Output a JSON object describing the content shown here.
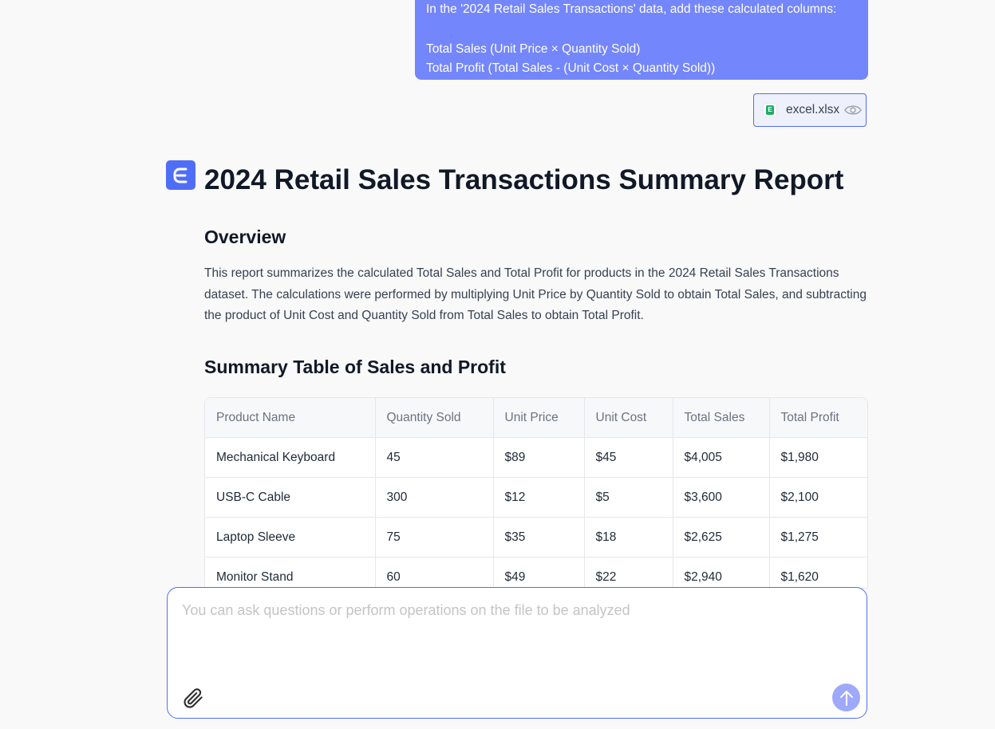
{
  "user_message": {
    "line1": "In the '2024 Retail Sales Transactions' data, add these calculated columns:",
    "line2": "Total Sales (Unit Price × Quantity Sold)",
    "line3": "Total Profit (Total Sales - (Unit Cost × Quantity Sold))"
  },
  "attachment": {
    "filename": "excel.xlsx",
    "file_icon": "excel-file-icon",
    "preview_icon": "eye-icon"
  },
  "assistant": {
    "avatar_icon": "assistant-logo-icon",
    "accent_color": "#4f6ef7"
  },
  "report": {
    "title": "2024 Retail Sales Transactions Summary Report",
    "overview_heading": "Overview",
    "overview_text": "This report summarizes the calculated Total Sales and Total Profit for products in the 2024 Retail Sales Transactions dataset. The calculations were performed by multiplying Unit Price by Quantity Sold to obtain Total Sales, and subtracting the product of Unit Cost and Quantity Sold from Total Sales to obtain Total Profit.",
    "summary_heading": "Summary Table of Sales and Profit",
    "table": {
      "headers": [
        "Product Name",
        "Quantity Sold",
        "Unit Price",
        "Unit Cost",
        "Total Sales",
        "Total Profit"
      ],
      "rows": [
        [
          "Mechanical Keyboard",
          "45",
          "$89",
          "$45",
          "$4,005",
          "$1,980"
        ],
        [
          "USB-C Cable",
          "300",
          "$12",
          "$5",
          "$3,600",
          "$2,100"
        ],
        [
          "Laptop Sleeve",
          "75",
          "$35",
          "$18",
          "$2,625",
          "$1,275"
        ],
        [
          "Monitor Stand",
          "60",
          "$49",
          "$22",
          "$2,940",
          "$1,620"
        ]
      ]
    }
  },
  "composer": {
    "placeholder": "You can ask questions or perform operations on the file to be analyzed",
    "value": "",
    "attach_icon": "paperclip-icon",
    "send_icon": "arrow-up-icon"
  }
}
